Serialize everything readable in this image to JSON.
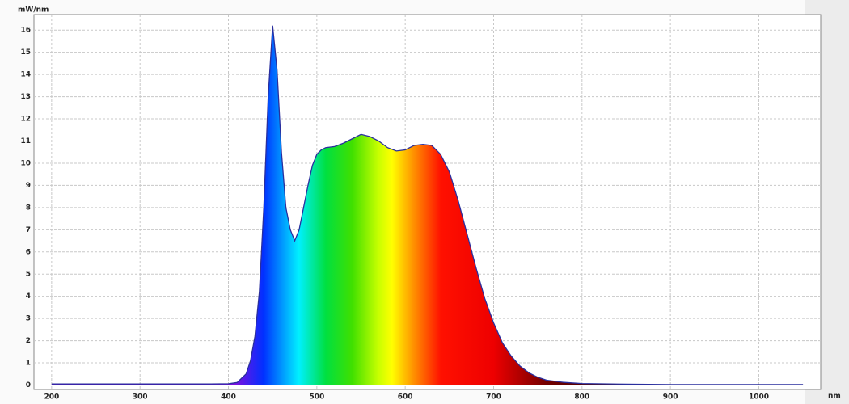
{
  "chart_data": {
    "type": "area",
    "y_label": "mW/nm",
    "x_label": "nm",
    "x": [
      200,
      250,
      300,
      350,
      380,
      400,
      410,
      420,
      425,
      430,
      435,
      440,
      445,
      450,
      455,
      460,
      465,
      470,
      475,
      480,
      485,
      490,
      495,
      500,
      505,
      510,
      520,
      530,
      540,
      550,
      560,
      570,
      580,
      590,
      600,
      610,
      620,
      630,
      640,
      650,
      660,
      670,
      680,
      690,
      700,
      710,
      720,
      730,
      740,
      750,
      760,
      780,
      800,
      850,
      900,
      950,
      1000,
      1050
    ],
    "values": [
      0.05,
      0.05,
      0.05,
      0.05,
      0.05,
      0.06,
      0.12,
      0.5,
      1.1,
      2.2,
      4.2,
      8.0,
      13.0,
      16.2,
      14.2,
      10.5,
      8.0,
      7.0,
      6.5,
      7.0,
      8.0,
      9.0,
      9.9,
      10.4,
      10.6,
      10.7,
      10.75,
      10.9,
      11.1,
      11.3,
      11.2,
      11.0,
      10.7,
      10.55,
      10.6,
      10.8,
      10.85,
      10.8,
      10.4,
      9.6,
      8.3,
      6.8,
      5.3,
      3.9,
      2.8,
      1.9,
      1.3,
      0.85,
      0.55,
      0.35,
      0.22,
      0.12,
      0.07,
      0.04,
      0.02,
      0.02,
      0.02,
      0.02
    ],
    "color": "#2a2f9e",
    "xlim": [
      180,
      1070
    ],
    "ylim": [
      -0.2,
      16.7
    ],
    "xticks": [
      200,
      300,
      400,
      500,
      600,
      700,
      800,
      900,
      1000
    ],
    "yticks": [
      0,
      1,
      2,
      3,
      4,
      5,
      6,
      7,
      8,
      9,
      10,
      11,
      12,
      13,
      14,
      15,
      16
    ],
    "grid": true
  }
}
